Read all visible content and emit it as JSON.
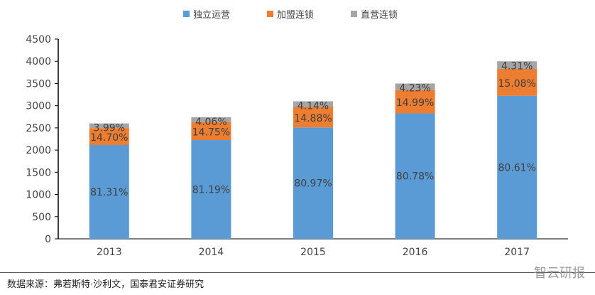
{
  "chart_data": {
    "type": "bar",
    "stacked": true,
    "categories": [
      "2013",
      "2014",
      "2015",
      "2016",
      "2017"
    ],
    "series": [
      {
        "name": "独立运营",
        "color": "#5b9bd5",
        "values": [
          2114,
          2225,
          2510,
          2827,
          3224
        ],
        "labels": [
          "81.31%",
          "81.19%",
          "80.97%",
          "80.78%",
          "80.61%"
        ]
      },
      {
        "name": "加盟连锁",
        "color": "#ed7d31",
        "values": [
          382,
          404,
          461,
          525,
          603
        ],
        "labels": [
          "14.70%",
          "14.75%",
          "14.88%",
          "14.99%",
          "15.08%"
        ]
      },
      {
        "name": "直营连锁",
        "color": "#a5a5a5",
        "values": [
          104,
          111,
          128,
          148,
          172
        ],
        "labels": [
          "3.99%",
          "4.06%",
          "4.14%",
          "4.23%",
          "4.31%"
        ]
      }
    ],
    "ylim": [
      0,
      4500
    ],
    "yticks": [
      "0",
      "500",
      "1000",
      "1500",
      "2000",
      "2500",
      "3000",
      "3500",
      "4000",
      "4500"
    ],
    "grid": false,
    "legend": "top"
  },
  "footer": {
    "source": "数据来源：弗若斯特·沙利文，国泰君安证券研究",
    "watermark": "智云研报"
  }
}
